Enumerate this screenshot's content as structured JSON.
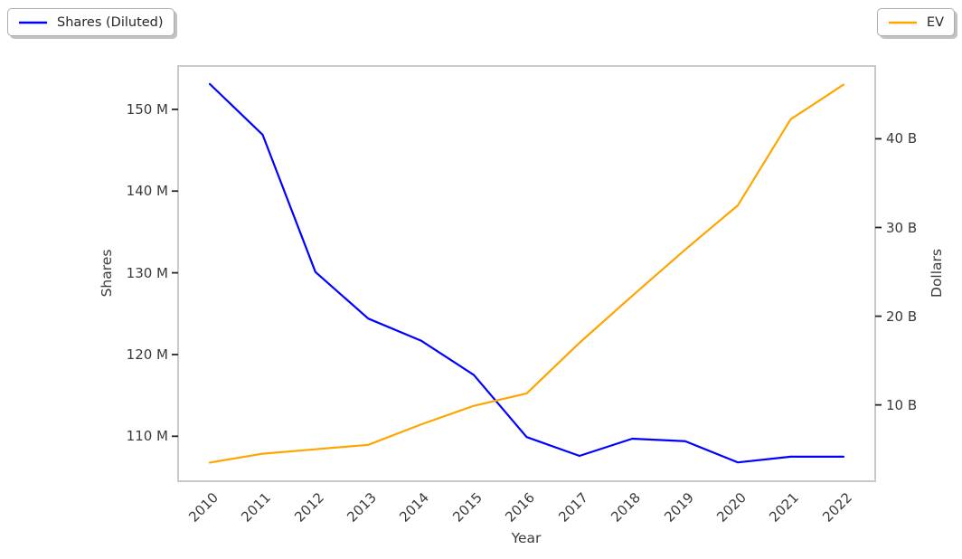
{
  "figure": {
    "background": "#ffffff",
    "legends": [
      {
        "label": "Shares (Diluted)",
        "color": "#0000ff",
        "position": "top-left"
      },
      {
        "label": "EV",
        "color": "#ffa500",
        "position": "top-right"
      }
    ]
  },
  "chart_data": {
    "type": "line",
    "title": "",
    "xlabel": "Year",
    "x": [
      2010,
      2011,
      2012,
      2013,
      2014,
      2015,
      2016,
      2017,
      2018,
      2019,
      2020,
      2021,
      2022
    ],
    "x_tick_labels": [
      "2010",
      "2011",
      "2012",
      "2013",
      "2014",
      "2015",
      "2016",
      "2017",
      "2018",
      "2019",
      "2020",
      "2021",
      "2022"
    ],
    "xlim": [
      2009.4,
      2022.6
    ],
    "grid": false,
    "legend_position": "outside top-left and top-right",
    "series": [
      {
        "name": "Shares (Diluted)",
        "axis": "left",
        "color": "#0000ff",
        "unit": "millions of shares",
        "values": [
          153.1,
          146.9,
          130.1,
          124.4,
          121.7,
          117.5,
          109.9,
          107.6,
          109.7,
          109.4,
          106.8,
          107.5,
          107.5
        ]
      },
      {
        "name": "EV",
        "axis": "right",
        "color": "#ffa500",
        "unit": "billions of dollars",
        "values": [
          3.5,
          4.5,
          5.0,
          5.5,
          7.8,
          9.9,
          11.3,
          17.0,
          22.3,
          27.5,
          32.5,
          42.2,
          46.1
        ]
      }
    ],
    "left_axis": {
      "label": "Shares",
      "ticks": [
        110,
        120,
        130,
        140,
        150
      ],
      "tick_labels": [
        "110 M",
        "120 M",
        "130 M",
        "140 M",
        "150 M"
      ],
      "range": [
        104.5,
        155.3
      ]
    },
    "right_axis": {
      "label": "Dollars",
      "ticks": [
        10,
        20,
        30,
        40
      ],
      "tick_labels": [
        "10 B",
        "20 B",
        "30 B",
        "40 B"
      ],
      "range": [
        1.4,
        48.2
      ]
    }
  }
}
